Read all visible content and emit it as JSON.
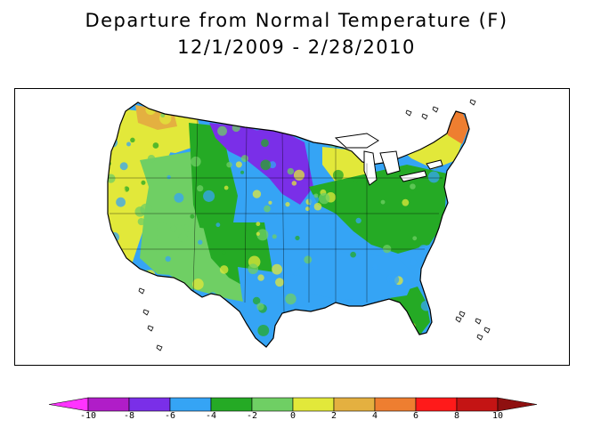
{
  "title": "Departure from Normal Temperature (F)",
  "period": "12/1/2009 - 2/28/2010",
  "colorbar": {
    "tick_labels": [
      "-10",
      "-8",
      "-6",
      "-4",
      "-2",
      "0",
      "2",
      "4",
      "6",
      "8",
      "10"
    ],
    "bins": [
      {
        "range": [
          -12,
          -10
        ],
        "color": "#ff33ff"
      },
      {
        "range": [
          -10,
          -8
        ],
        "color": "#b01dc8"
      },
      {
        "range": [
          -8,
          -6
        ],
        "color": "#7a2fe8"
      },
      {
        "range": [
          -6,
          -4
        ],
        "color": "#35a4f5"
      },
      {
        "range": [
          -4,
          -2
        ],
        "color": "#25aa25"
      },
      {
        "range": [
          -2,
          0
        ],
        "color": "#6fcf64"
      },
      {
        "range": [
          0,
          2
        ],
        "color": "#e2e83a"
      },
      {
        "range": [
          2,
          4
        ],
        "color": "#e4b040"
      },
      {
        "range": [
          4,
          6
        ],
        "color": "#ee7e30"
      },
      {
        "range": [
          6,
          8
        ],
        "color": "#ff1a1a"
      },
      {
        "range": [
          8,
          10
        ],
        "color": "#c41414"
      },
      {
        "range": [
          10,
          12
        ],
        "color": "#8f1010"
      }
    ]
  },
  "map": {
    "region": "Contiguous United States",
    "variable": "Temperature departure from normal",
    "units": "F",
    "outline_color": "#000000",
    "regions": [
      {
        "name": "pacific-northwest",
        "anomaly_f": "0 to 2",
        "color": "#e2e83a"
      },
      {
        "name": "northern-washington",
        "anomaly_f": "2 to 4",
        "color": "#e4b040"
      },
      {
        "name": "california",
        "anomaly_f": "0 to 2",
        "color": "#e2e83a"
      },
      {
        "name": "great-basin",
        "anomaly_f": "-2 to 0",
        "color": "#6fcf64"
      },
      {
        "name": "northern-rockies",
        "anomaly_f": "-4 to -2",
        "color": "#25aa25"
      },
      {
        "name": "montana-dakotas",
        "anomaly_f": "-8 to -6",
        "color": "#7a2fe8"
      },
      {
        "name": "northern-plains",
        "anomaly_f": "-6 to -4",
        "color": "#35a4f5"
      },
      {
        "name": "central-plains",
        "anomaly_f": "-6 to -4",
        "color": "#35a4f5"
      },
      {
        "name": "southwest",
        "anomaly_f": "-2 to 0",
        "color": "#6fcf64"
      },
      {
        "name": "texas-south",
        "anomaly_f": "-6 to -4",
        "color": "#35a4f5"
      },
      {
        "name": "southeast",
        "anomaly_f": "-6 to -4",
        "color": "#35a4f5"
      },
      {
        "name": "great-lakes",
        "anomaly_f": "0 to 2",
        "color": "#e2e83a"
      },
      {
        "name": "ohio-valley",
        "anomaly_f": "-4 to -2",
        "color": "#25aa25"
      },
      {
        "name": "mid-atlantic",
        "anomaly_f": "-4 to -2",
        "color": "#25aa25"
      },
      {
        "name": "new-england",
        "anomaly_f": "0 to 2",
        "color": "#e2e83a"
      },
      {
        "name": "northern-maine",
        "anomaly_f": "4 to 6",
        "color": "#ee7e30"
      },
      {
        "name": "florida",
        "anomaly_f": "-4 to -2",
        "color": "#25aa25"
      }
    ]
  }
}
